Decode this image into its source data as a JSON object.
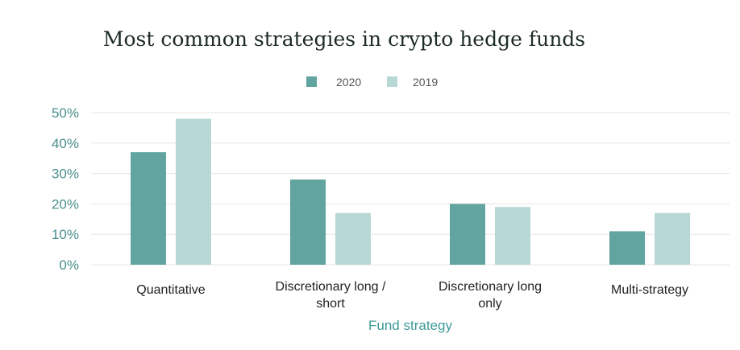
{
  "chart_data": {
    "type": "bar",
    "title": "Most common strategies in crypto hedge funds",
    "xlabel": "Fund strategy",
    "ylabel": "",
    "categories": [
      [
        "Quantitative"
      ],
      [
        "Discretionary long /",
        "short"
      ],
      [
        "Discretionary long",
        "only"
      ],
      [
        "Multi-strategy"
      ]
    ],
    "series": [
      {
        "name": "2020",
        "color": "#62a5a0",
        "values": [
          37,
          28,
          20,
          11
        ]
      },
      {
        "name": "2019",
        "color": "#b8d8d6",
        "values": [
          48,
          17,
          19,
          17
        ]
      }
    ],
    "ylim": [
      0,
      50
    ],
    "yticks": [
      {
        "value": 0,
        "label": "0%"
      },
      {
        "value": 10,
        "label": "10%"
      },
      {
        "value": 20,
        "label": "20%"
      },
      {
        "value": 30,
        "label": "30%"
      },
      {
        "value": 40,
        "label": "40%"
      },
      {
        "value": 50,
        "label": "50%"
      }
    ],
    "grid": true,
    "legend": "top-center"
  }
}
